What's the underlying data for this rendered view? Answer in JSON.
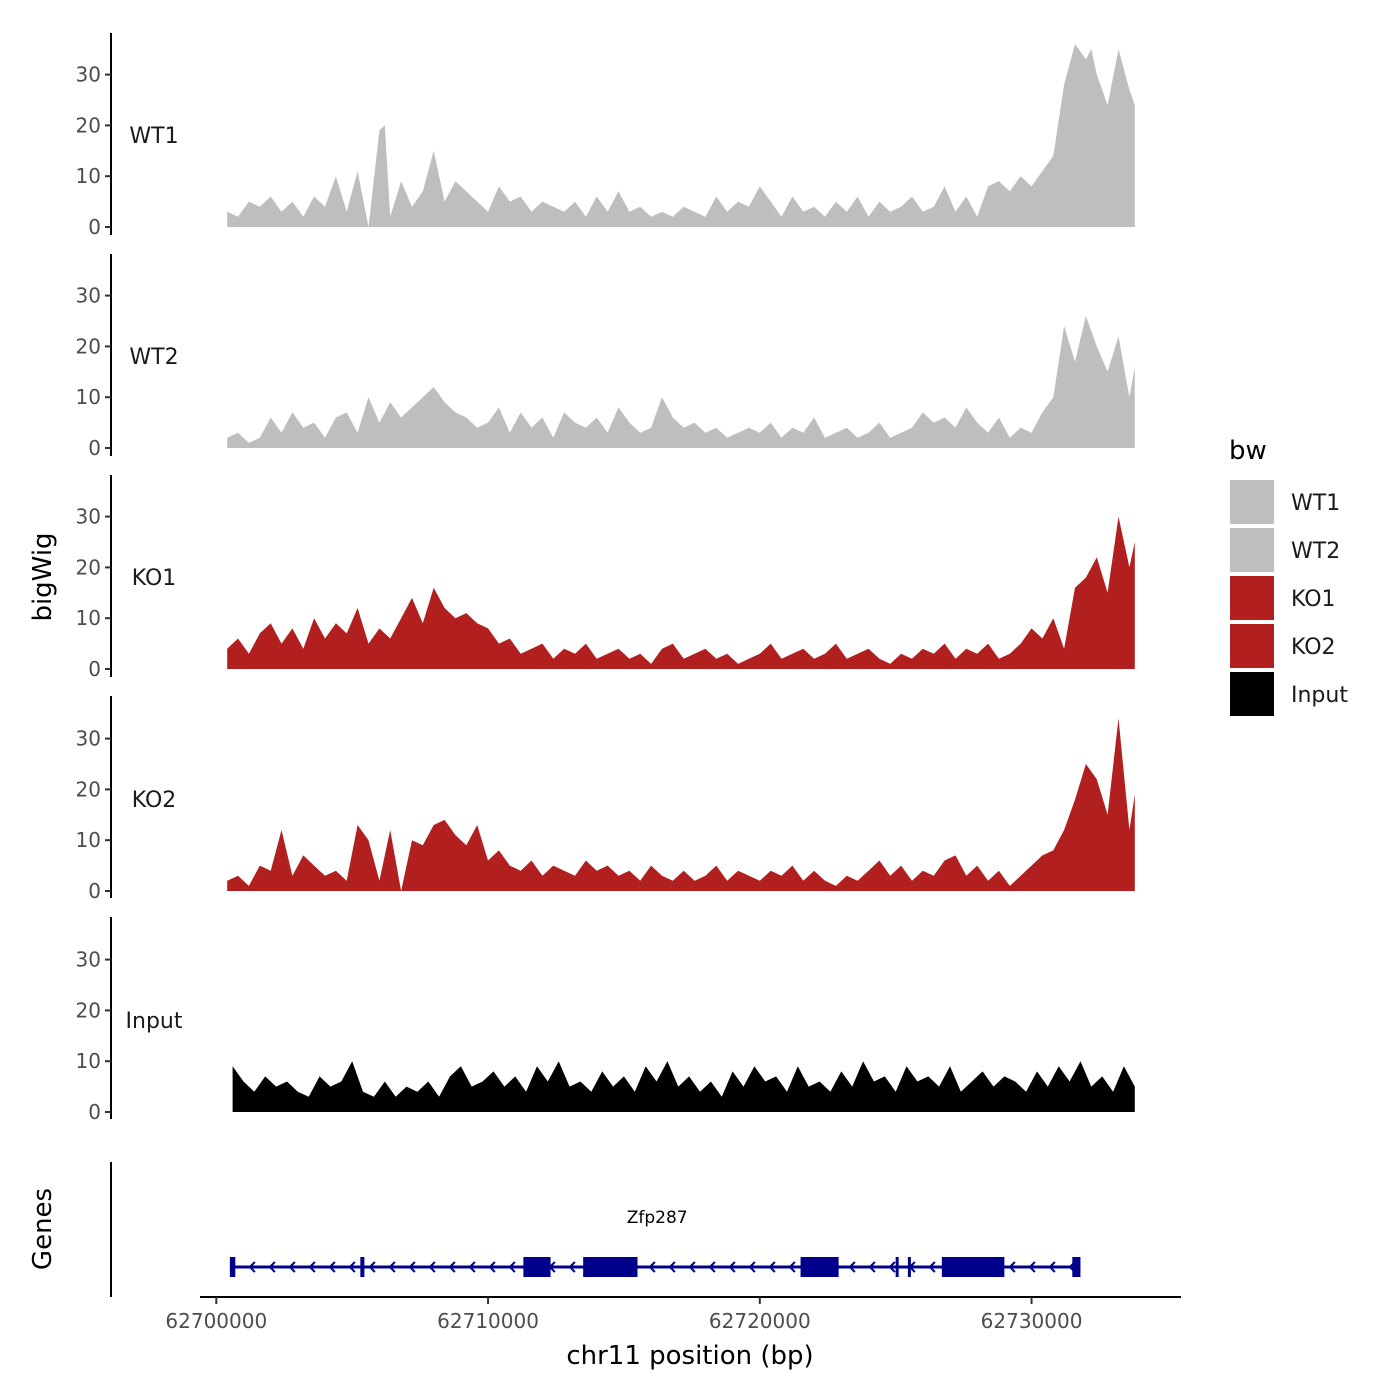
{
  "chart_data": {
    "type": "area",
    "chromosome": "chr11",
    "xlabel": "chr11 position (bp)",
    "ylabel": "bigWig",
    "genes_track_label": "Genes",
    "xlim": [
      62699400,
      62735500
    ],
    "x_ticks": [
      62700000,
      62710000,
      62720000,
      62730000
    ],
    "x_tick_labels": [
      "62700000",
      "62710000",
      "62720000",
      "62730000"
    ],
    "ylim": [
      0,
      38
    ],
    "y_ticks": [
      0,
      10,
      20,
      30
    ],
    "y_tick_labels": [
      "0",
      "10",
      "20",
      "30"
    ],
    "legend": {
      "title": "bw",
      "entries": [
        {
          "label": "WT1",
          "color": "#bebebe"
        },
        {
          "label": "WT2",
          "color": "#bebebe"
        },
        {
          "label": "KO1",
          "color": "#b21f1f"
        },
        {
          "label": "KO2",
          "color": "#b21f1f"
        },
        {
          "label": "Input",
          "color": "#000000"
        }
      ]
    },
    "series": [
      {
        "name": "WT1",
        "color": "#bebebe",
        "x": [
          62700400,
          62700800,
          62701200,
          62701600,
          62702000,
          62702400,
          62702800,
          62703200,
          62703600,
          62704000,
          62704400,
          62704800,
          62705200,
          62705600,
          62706000,
          62706200,
          62706400,
          62706800,
          62707200,
          62707600,
          62708000,
          62708400,
          62708800,
          62709200,
          62709600,
          62710000,
          62710400,
          62710800,
          62711200,
          62711600,
          62712000,
          62712400,
          62712800,
          62713200,
          62713600,
          62714000,
          62714400,
          62714800,
          62715200,
          62715600,
          62716000,
          62716400,
          62716800,
          62717200,
          62717600,
          62718000,
          62718400,
          62718800,
          62719200,
          62719600,
          62720000,
          62720400,
          62720800,
          62721200,
          62721600,
          62722000,
          62722400,
          62722800,
          62723200,
          62723600,
          62724000,
          62724400,
          62724800,
          62725200,
          62725600,
          62726000,
          62726400,
          62726800,
          62727200,
          62727600,
          62728000,
          62728400,
          62728800,
          62729200,
          62729600,
          62730000,
          62730400,
          62730800,
          62731200,
          62731600,
          62732000,
          62732200,
          62732400,
          62732800,
          62733200,
          62733600,
          62733800
        ],
        "values": [
          3,
          2,
          5,
          4,
          6,
          3,
          5,
          2,
          6,
          4,
          10,
          3,
          11,
          0,
          19,
          20,
          2,
          9,
          4,
          7,
          15,
          5,
          9,
          7,
          5,
          3,
          8,
          5,
          6,
          3,
          5,
          4,
          3,
          5,
          2,
          6,
          3,
          7,
          3,
          4,
          2,
          3,
          2,
          4,
          3,
          2,
          6,
          3,
          5,
          4,
          8,
          5,
          2,
          6,
          3,
          4,
          2,
          5,
          3,
          6,
          2,
          5,
          3,
          4,
          6,
          3,
          4,
          8,
          3,
          6,
          2,
          8,
          9,
          7,
          10,
          8,
          11,
          14,
          28,
          36,
          33,
          35,
          30,
          24,
          35,
          27,
          24
        ]
      },
      {
        "name": "WT2",
        "color": "#bebebe",
        "x": [
          62700400,
          62700800,
          62701200,
          62701600,
          62702000,
          62702400,
          62702800,
          62703200,
          62703600,
          62704000,
          62704400,
          62704800,
          62705200,
          62705600,
          62706000,
          62706400,
          62706800,
          62707200,
          62707600,
          62708000,
          62708400,
          62708800,
          62709200,
          62709600,
          62710000,
          62710400,
          62710800,
          62711200,
          62711600,
          62712000,
          62712400,
          62712800,
          62713200,
          62713600,
          62714000,
          62714400,
          62714800,
          62715200,
          62715600,
          62716000,
          62716400,
          62716800,
          62717200,
          62717600,
          62718000,
          62718400,
          62718800,
          62719200,
          62719600,
          62720000,
          62720400,
          62720800,
          62721200,
          62721600,
          62722000,
          62722400,
          62722800,
          62723200,
          62723600,
          62724000,
          62724400,
          62724800,
          62725200,
          62725600,
          62726000,
          62726400,
          62726800,
          62727200,
          62727600,
          62728000,
          62728400,
          62728800,
          62729200,
          62729600,
          62730000,
          62730400,
          62730800,
          62731200,
          62731600,
          62732000,
          62732400,
          62732800,
          62733200,
          62733600,
          62733800
        ],
        "values": [
          2,
          3,
          1,
          2,
          6,
          3,
          7,
          4,
          5,
          2,
          6,
          7,
          3,
          10,
          5,
          9,
          6,
          8,
          10,
          12,
          9,
          7,
          6,
          4,
          5,
          8,
          3,
          7,
          4,
          6,
          2,
          7,
          5,
          4,
          6,
          3,
          8,
          5,
          3,
          4,
          10,
          6,
          4,
          5,
          3,
          4,
          2,
          3,
          4,
          3,
          5,
          2,
          4,
          3,
          6,
          2,
          3,
          4,
          2,
          3,
          5,
          2,
          3,
          4,
          7,
          5,
          6,
          4,
          8,
          5,
          3,
          6,
          2,
          4,
          3,
          7,
          10,
          24,
          17,
          26,
          20,
          15,
          22,
          10,
          16
        ]
      },
      {
        "name": "KO1",
        "color": "#b21f1f",
        "x": [
          62700400,
          62700800,
          62701200,
          62701600,
          62702000,
          62702400,
          62702800,
          62703200,
          62703600,
          62704000,
          62704400,
          62704800,
          62705200,
          62705600,
          62706000,
          62706400,
          62706800,
          62707200,
          62707600,
          62708000,
          62708400,
          62708800,
          62709200,
          62709600,
          62710000,
          62710400,
          62710800,
          62711200,
          62711600,
          62712000,
          62712400,
          62712800,
          62713200,
          62713600,
          62714000,
          62714400,
          62714800,
          62715200,
          62715600,
          62716000,
          62716400,
          62716800,
          62717200,
          62717600,
          62718000,
          62718400,
          62718800,
          62719200,
          62719600,
          62720000,
          62720400,
          62720800,
          62721200,
          62721600,
          62722000,
          62722400,
          62722800,
          62723200,
          62723600,
          62724000,
          62724400,
          62724800,
          62725200,
          62725600,
          62726000,
          62726400,
          62726800,
          62727200,
          62727600,
          62728000,
          62728400,
          62728800,
          62729200,
          62729600,
          62730000,
          62730400,
          62730800,
          62731200,
          62731600,
          62732000,
          62732400,
          62732800,
          62733200,
          62733600,
          62733800
        ],
        "values": [
          4,
          6,
          3,
          7,
          9,
          5,
          8,
          4,
          10,
          6,
          9,
          7,
          12,
          5,
          8,
          6,
          10,
          14,
          9,
          16,
          12,
          10,
          11,
          9,
          8,
          5,
          6,
          3,
          4,
          5,
          2,
          4,
          3,
          5,
          2,
          3,
          4,
          2,
          3,
          1,
          4,
          5,
          2,
          3,
          4,
          2,
          3,
          1,
          2,
          3,
          5,
          2,
          3,
          4,
          2,
          3,
          5,
          2,
          3,
          4,
          2,
          1,
          3,
          2,
          4,
          3,
          5,
          2,
          4,
          3,
          5,
          2,
          3,
          5,
          8,
          6,
          10,
          4,
          16,
          18,
          22,
          15,
          30,
          20,
          25
        ]
      },
      {
        "name": "KO2",
        "color": "#b21f1f",
        "x": [
          62700400,
          62700800,
          62701200,
          62701600,
          62702000,
          62702400,
          62702800,
          62703200,
          62703600,
          62704000,
          62704400,
          62704800,
          62705200,
          62705600,
          62706000,
          62706400,
          62706800,
          62707200,
          62707600,
          62708000,
          62708400,
          62708800,
          62709200,
          62709600,
          62710000,
          62710400,
          62710800,
          62711200,
          62711600,
          62712000,
          62712400,
          62712800,
          62713200,
          62713600,
          62714000,
          62714400,
          62714800,
          62715200,
          62715600,
          62716000,
          62716400,
          62716800,
          62717200,
          62717600,
          62718000,
          62718400,
          62718800,
          62719200,
          62719600,
          62720000,
          62720400,
          62720800,
          62721200,
          62721600,
          62722000,
          62722400,
          62722800,
          62723200,
          62723600,
          62724000,
          62724400,
          62724800,
          62725200,
          62725600,
          62726000,
          62726400,
          62726800,
          62727200,
          62727600,
          62728000,
          62728400,
          62728800,
          62729200,
          62729600,
          62730000,
          62730400,
          62730800,
          62731200,
          62731600,
          62732000,
          62732400,
          62732800,
          62733200,
          62733600,
          62733800
        ],
        "values": [
          2,
          3,
          1,
          5,
          4,
          12,
          3,
          7,
          5,
          3,
          4,
          2,
          13,
          10,
          2,
          12,
          0,
          10,
          9,
          13,
          14,
          11,
          9,
          13,
          6,
          8,
          5,
          4,
          6,
          3,
          5,
          4,
          3,
          6,
          4,
          5,
          3,
          4,
          2,
          5,
          3,
          2,
          4,
          2,
          3,
          5,
          2,
          4,
          3,
          2,
          4,
          3,
          5,
          2,
          4,
          2,
          1,
          3,
          2,
          4,
          6,
          3,
          5,
          2,
          4,
          3,
          6,
          7,
          3,
          5,
          2,
          4,
          1,
          3,
          5,
          7,
          8,
          12,
          18,
          25,
          22,
          15,
          34,
          12,
          19
        ]
      },
      {
        "name": "Input",
        "color": "#000000",
        "x": [
          62700600,
          62701000,
          62701400,
          62701800,
          62702200,
          62702600,
          62703000,
          62703400,
          62703800,
          62704200,
          62704600,
          62705000,
          62705400,
          62705800,
          62706200,
          62706600,
          62707000,
          62707400,
          62707800,
          62708200,
          62708600,
          62709000,
          62709400,
          62709800,
          62710200,
          62710600,
          62711000,
          62711400,
          62711800,
          62712200,
          62712600,
          62713000,
          62713400,
          62713800,
          62714200,
          62714600,
          62715000,
          62715400,
          62715800,
          62716200,
          62716600,
          62717000,
          62717400,
          62717800,
          62718200,
          62718600,
          62719000,
          62719400,
          62719800,
          62720200,
          62720600,
          62721000,
          62721400,
          62721800,
          62722200,
          62722600,
          62723000,
          62723400,
          62723800,
          62724200,
          62724600,
          62725000,
          62725400,
          62725800,
          62726200,
          62726600,
          62727000,
          62727400,
          62727800,
          62728200,
          62728600,
          62729000,
          62729400,
          62729800,
          62730200,
          62730600,
          62731000,
          62731400,
          62731800,
          62732200,
          62732600,
          62733000,
          62733400,
          62733800
        ],
        "values": [
          9,
          6,
          4,
          7,
          5,
          6,
          4,
          3,
          7,
          5,
          6,
          10,
          4,
          3,
          6,
          3,
          5,
          4,
          6,
          3,
          7,
          9,
          5,
          6,
          8,
          5,
          7,
          4,
          9,
          6,
          10,
          5,
          6,
          4,
          8,
          5,
          7,
          4,
          9,
          6,
          10,
          5,
          7,
          4,
          6,
          3,
          8,
          5,
          9,
          6,
          7,
          4,
          9,
          5,
          6,
          4,
          8,
          5,
          10,
          6,
          7,
          4,
          9,
          6,
          7,
          5,
          9,
          4,
          6,
          8,
          5,
          7,
          6,
          4,
          8,
          5,
          9,
          6,
          10,
          5,
          7,
          4,
          9,
          5
        ]
      }
    ],
    "genes": [
      {
        "name": "Zfp287",
        "start": 62700500,
        "end": 62731800,
        "strand": "-",
        "color": "#00008b",
        "exons": [
          [
            62700500,
            62700700
          ],
          [
            62705300,
            62705450
          ],
          [
            62711300,
            62712300
          ],
          [
            62713500,
            62715500
          ],
          [
            62721500,
            62722900
          ],
          [
            62725000,
            62725100
          ],
          [
            62725450,
            62725550
          ],
          [
            62726700,
            62729000
          ],
          [
            62731500,
            62731800
          ]
        ]
      }
    ]
  }
}
